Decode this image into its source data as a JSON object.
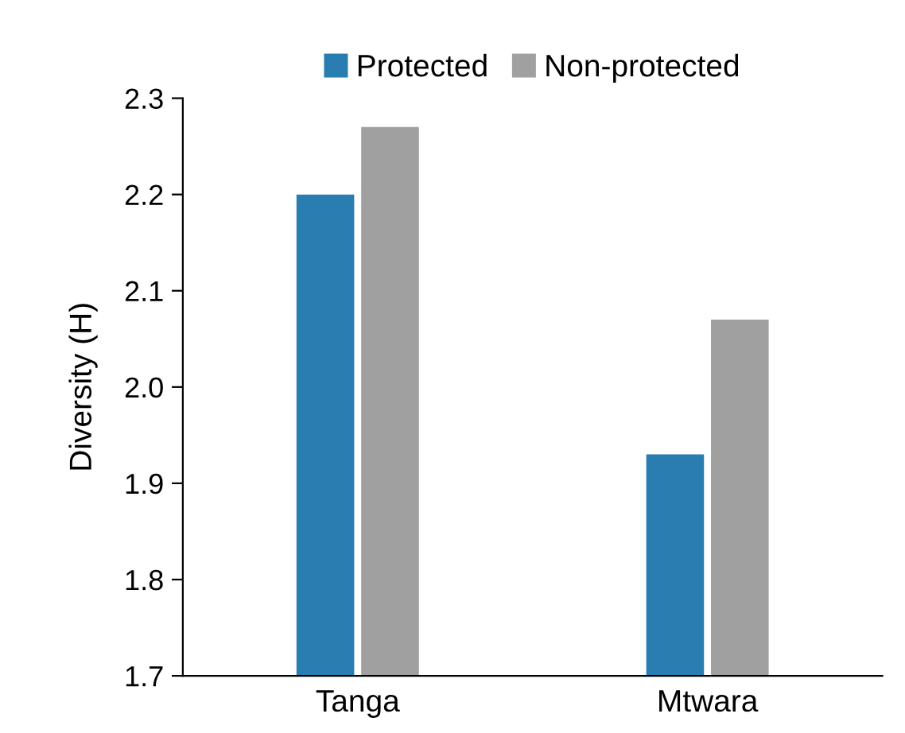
{
  "chart_data": {
    "type": "bar",
    "ylabel": "Diversity (H)",
    "categories": [
      "Tanga",
      "Mtwara"
    ],
    "series": [
      {
        "name": "Protected",
        "color": "#2a7db0",
        "values": [
          2.2,
          1.93
        ]
      },
      {
        "name": "Non-protected",
        "color": "#a0a0a0",
        "values": [
          2.27,
          2.07
        ]
      }
    ],
    "ylim": [
      1.7,
      2.3
    ],
    "yticks": [
      1.7,
      1.8,
      1.9,
      {
        "value": 2,
        "label": "2.0"
      },
      2.1,
      2.2,
      2.3
    ],
    "grid": false,
    "legend": "top"
  }
}
